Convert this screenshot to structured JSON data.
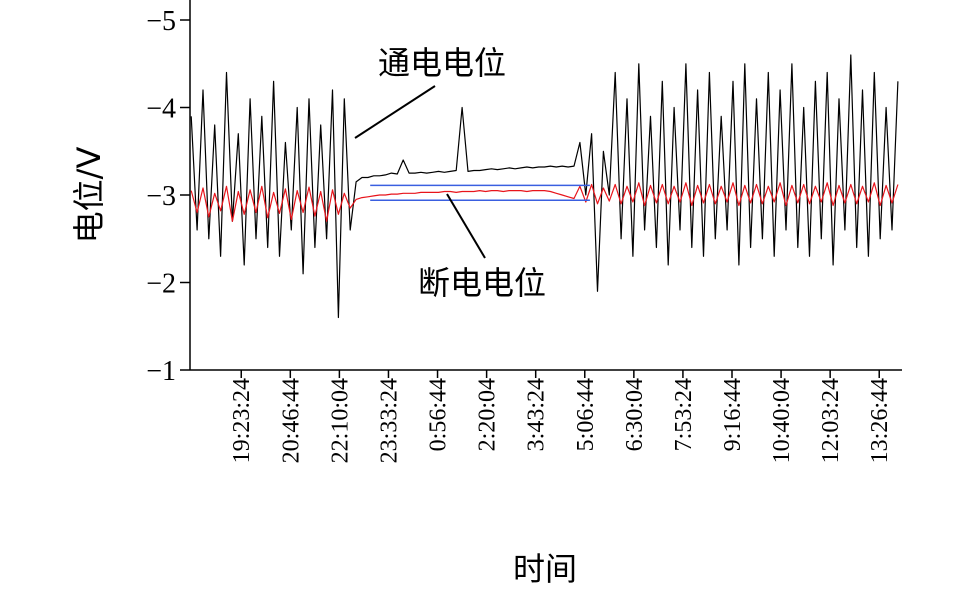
{
  "chart_data": {
    "type": "line",
    "xlabel": "时间",
    "ylabel": "电位/V",
    "x": [
      -85,
      -75,
      -65,
      -55,
      -45,
      -35,
      -25,
      -15,
      -5,
      5,
      15,
      25,
      35,
      45,
      55,
      65,
      75,
      85,
      95,
      105,
      115,
      125,
      135,
      145,
      155,
      165,
      175,
      185,
      195,
      205,
      215,
      225,
      235,
      245,
      255,
      265,
      275,
      285,
      295,
      305,
      315,
      325,
      335,
      345,
      355,
      365,
      375,
      385,
      395,
      405,
      415,
      425,
      435,
      445,
      455,
      465,
      475,
      485,
      495,
      505,
      515,
      525,
      535,
      545,
      555,
      565,
      575,
      585,
      595,
      605,
      615,
      625,
      635,
      645,
      655,
      665,
      675,
      685,
      695,
      705,
      715,
      725,
      735,
      745,
      755,
      765,
      775,
      785,
      795,
      805,
      815,
      825,
      835,
      845,
      855,
      865,
      875,
      885,
      895,
      905,
      915,
      925,
      935,
      945,
      955,
      965,
      975,
      985,
      995,
      1005,
      1015,
      1025,
      1035,
      1045,
      1055,
      1065,
      1075,
      1085,
      1095,
      1105,
      1115
    ],
    "series": [
      {
        "name": "通电电位",
        "color": "#000000",
        "values": [
          -3.9,
          -2.6,
          -4.2,
          -2.5,
          -3.8,
          -2.3,
          -4.4,
          -2.7,
          -3.7,
          -2.2,
          -4.1,
          -2.5,
          -3.9,
          -2.4,
          -4.3,
          -2.3,
          -3.6,
          -2.6,
          -4.0,
          -2.1,
          -4.1,
          -2.4,
          -3.8,
          -2.5,
          -4.2,
          -1.6,
          -4.1,
          -2.6,
          -3.15,
          -3.2,
          -3.2,
          -3.22,
          -3.22,
          -3.23,
          -3.25,
          -3.24,
          -3.4,
          -3.25,
          -3.25,
          -3.26,
          -3.25,
          -3.26,
          -3.27,
          -3.26,
          -3.27,
          -3.28,
          -4.0,
          -3.27,
          -3.28,
          -3.28,
          -3.29,
          -3.3,
          -3.29,
          -3.3,
          -3.31,
          -3.3,
          -3.31,
          -3.32,
          -3.31,
          -3.32,
          -3.32,
          -3.33,
          -3.32,
          -3.33,
          -3.32,
          -3.33,
          -3.6,
          -3.0,
          -3.7,
          -1.9,
          -3.5,
          -3.0,
          -4.4,
          -2.5,
          -4.1,
          -2.3,
          -4.5,
          -2.6,
          -3.9,
          -2.4,
          -4.3,
          -2.2,
          -4.0,
          -2.6,
          -4.5,
          -2.4,
          -4.2,
          -2.3,
          -4.4,
          -2.5,
          -3.9,
          -2.6,
          -4.3,
          -2.2,
          -4.5,
          -2.4,
          -4.1,
          -2.5,
          -4.4,
          -2.3,
          -4.2,
          -2.6,
          -4.5,
          -2.4,
          -4.0,
          -2.3,
          -4.3,
          -2.5,
          -4.4,
          -2.2,
          -4.1,
          -2.6,
          -4.6,
          -2.4,
          -4.2,
          -2.3,
          -4.4,
          -2.5,
          -4.0,
          -2.6,
          -4.3
        ]
      },
      {
        "name": "断电电位",
        "color": "#e8141b",
        "values": [
          -3.05,
          -2.8,
          -3.08,
          -2.75,
          -3.02,
          -2.82,
          -3.1,
          -2.7,
          -3.04,
          -2.78,
          -3.06,
          -2.8,
          -3.1,
          -2.74,
          -3.03,
          -2.79,
          -3.07,
          -2.72,
          -3.05,
          -2.8,
          -3.09,
          -2.76,
          -3.04,
          -2.7,
          -3.06,
          -2.78,
          -3.02,
          -2.85,
          -2.95,
          -2.97,
          -2.98,
          -2.99,
          -3.0,
          -3.0,
          -3.01,
          -3.01,
          -3.02,
          -3.02,
          -3.02,
          -3.03,
          -3.03,
          -3.03,
          -3.03,
          -3.04,
          -3.04,
          -3.03,
          -3.04,
          -3.04,
          -3.04,
          -3.05,
          -3.04,
          -3.05,
          -3.05,
          -3.04,
          -3.05,
          -3.05,
          -3.05,
          -3.04,
          -3.05,
          -3.05,
          -3.05,
          -3.04,
          -3.02,
          -3.0,
          -2.98,
          -2.96,
          -3.1,
          -2.92,
          -3.12,
          -2.9,
          -3.08,
          -2.93,
          -3.12,
          -2.9,
          -3.1,
          -2.92,
          -3.14,
          -2.88,
          -3.11,
          -2.91,
          -3.12,
          -2.9,
          -3.1,
          -2.92,
          -3.14,
          -2.88,
          -3.11,
          -2.91,
          -3.12,
          -2.9,
          -3.1,
          -2.92,
          -3.14,
          -2.88,
          -3.11,
          -2.91,
          -3.12,
          -2.9,
          -3.1,
          -2.92,
          -3.14,
          -2.88,
          -3.11,
          -2.91,
          -3.12,
          -2.9,
          -3.1,
          -2.92,
          -3.14,
          -2.88,
          -3.11,
          -2.91,
          -3.12,
          -2.9,
          -3.1,
          -2.92,
          -3.14,
          -2.88,
          -3.11,
          -2.91,
          -3.12
        ]
      },
      {
        "color": "#3a5fe0",
        "x": [
          219,
          592
        ],
        "values": [
          -3.11,
          -3.11
        ]
      },
      {
        "color": "#3a5fe0",
        "x": [
          219,
          592
        ],
        "values": [
          -2.94,
          -2.94
        ]
      }
    ],
    "xlim": [
      -87,
      1122
    ],
    "xticks": [
      {
        "value": 0,
        "label": "19:23:24"
      },
      {
        "value": 83.33,
        "label": "20:46:44"
      },
      {
        "value": 166.67,
        "label": "22:10:04"
      },
      {
        "value": 250,
        "label": "23:33:24"
      },
      {
        "value": 333.33,
        "label": "0:56:44"
      },
      {
        "value": 416.67,
        "label": "2:20:04"
      },
      {
        "value": 500,
        "label": "3:43:24"
      },
      {
        "value": 583.33,
        "label": "5:06:44"
      },
      {
        "value": 666.67,
        "label": "6:30:04"
      },
      {
        "value": 750,
        "label": "7:53:24"
      },
      {
        "value": 833.33,
        "label": "9:16:44"
      },
      {
        "value": 916.67,
        "label": "10:40:04"
      },
      {
        "value": 1000,
        "label": "12:03:24"
      },
      {
        "value": 1083.33,
        "label": "13:26:44"
      }
    ],
    "ylim": [
      -1,
      -5.2
    ],
    "yticks": [
      {
        "value": -5,
        "label": "−5"
      },
      {
        "value": -4,
        "label": "−4"
      },
      {
        "value": -3,
        "label": "−3"
      },
      {
        "value": -2,
        "label": "−2"
      },
      {
        "value": -1,
        "label": "−1"
      }
    ]
  }
}
